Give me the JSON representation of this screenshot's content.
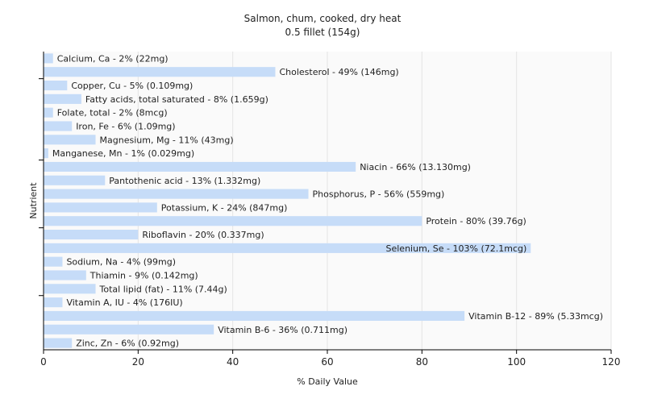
{
  "chart_data": {
    "type": "bar",
    "orientation": "horizontal",
    "title": "Salmon, chum, cooked, dry heat",
    "subtitle": "0.5 fillet (154g)",
    "xlabel": "% Daily Value",
    "ylabel": "Nutrient",
    "xlim": [
      0,
      120
    ],
    "xticks": [
      0,
      20,
      40,
      60,
      80,
      100,
      120
    ],
    "grid": true,
    "bar_color": "#c6dcf8",
    "categories": [
      "Calcium, Ca",
      "Cholesterol",
      "Copper, Cu",
      "Fatty acids, total saturated",
      "Folate, total",
      "Iron, Fe",
      "Magnesium, Mg",
      "Manganese, Mn",
      "Niacin",
      "Pantothenic acid",
      "Phosphorus, P",
      "Potassium, K",
      "Protein",
      "Riboflavin",
      "Selenium, Se",
      "Sodium, Na",
      "Thiamin",
      "Total lipid (fat)",
      "Vitamin A, IU",
      "Vitamin B-12",
      "Vitamin B-6",
      "Zinc, Zn"
    ],
    "values": [
      2,
      49,
      5,
      8,
      2,
      6,
      11,
      1,
      66,
      13,
      56,
      24,
      80,
      20,
      103,
      4,
      9,
      11,
      4,
      89,
      36,
      6
    ],
    "labels": [
      "Calcium, Ca - 2% (22mg)",
      "Cholesterol - 49% (146mg)",
      "Copper, Cu - 5% (0.109mg)",
      "Fatty acids, total saturated - 8% (1.659g)",
      "Folate, total - 2% (8mcg)",
      "Iron, Fe - 6% (1.09mg)",
      "Magnesium, Mg - 11% (43mg)",
      "Manganese, Mn - 1% (0.029mg)",
      "Niacin - 66% (13.130mg)",
      "Pantothenic acid - 13% (1.332mg)",
      "Phosphorus, P - 56% (559mg)",
      "Potassium, K - 24% (847mg)",
      "Protein - 80% (39.76g)",
      "Riboflavin - 20% (0.337mg)",
      "Selenium, Se - 103% (72.1mcg)",
      "Sodium, Na - 4% (99mg)",
      "Thiamin - 9% (0.142mg)",
      "Total lipid (fat) - 11% (7.44g)",
      "Vitamin A, IU - 4% (176IU)",
      "Vitamin B-12 - 89% (5.33mcg)",
      "Vitamin B-6 - 36% (0.711mg)",
      "Zinc, Zn - 6% (0.92mg)"
    ]
  }
}
